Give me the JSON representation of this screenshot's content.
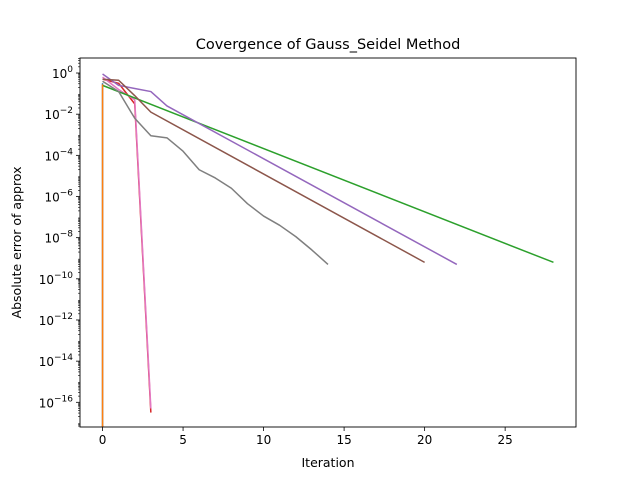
{
  "chart_data": {
    "type": "line",
    "title": "Covergence of Gauss_Seidel Method",
    "xlabel": "Iteration",
    "ylabel": "Absolute error of approx",
    "xlim": [
      -1.4,
      29.4
    ],
    "ylim_log10": [
      -17.2,
      0.73
    ],
    "yscale": "log",
    "grid": false,
    "x_ticks": [
      {
        "value": 0,
        "label": "0"
      },
      {
        "value": 5,
        "label": "5"
      },
      {
        "value": 10,
        "label": "10"
      },
      {
        "value": 15,
        "label": "15"
      },
      {
        "value": 20,
        "label": "20"
      },
      {
        "value": 25,
        "label": "25"
      }
    ],
    "y_ticks": [
      {
        "exp": 0,
        "base": "10",
        "sup": "0"
      },
      {
        "exp": -2,
        "base": "10",
        "sup": "−2"
      },
      {
        "exp": -4,
        "base": "10",
        "sup": "−4"
      },
      {
        "exp": -6,
        "base": "10",
        "sup": "−6"
      },
      {
        "exp": -8,
        "base": "10",
        "sup": "−8"
      },
      {
        "exp": -10,
        "base": "10",
        "sup": "−10"
      },
      {
        "exp": -12,
        "base": "10",
        "sup": "−12"
      },
      {
        "exp": -14,
        "base": "10",
        "sup": "−14"
      },
      {
        "exp": -16,
        "base": "10",
        "sup": "−16"
      }
    ],
    "series": [
      {
        "color": "#1f77b4",
        "points": [
          [
            0,
            -0.5
          ],
          [
            0,
            -17.2
          ]
        ]
      },
      {
        "color": "#d62728",
        "points": [
          [
            0,
            -0.3
          ],
          [
            1,
            -0.5
          ],
          [
            2,
            -1.5
          ],
          [
            3,
            -16.5
          ]
        ]
      },
      {
        "color": "#e377c2",
        "points": [
          [
            0,
            -0.2
          ],
          [
            1,
            -0.8
          ],
          [
            2,
            -1.3
          ],
          [
            3,
            -16.3
          ]
        ]
      },
      {
        "color": "#2ca02c",
        "points": [
          [
            0,
            -0.6
          ],
          [
            28,
            -9.2
          ]
        ]
      },
      {
        "color": "#9467bd",
        "points": [
          [
            0,
            -0.05
          ],
          [
            1,
            -0.6
          ],
          [
            2,
            -0.75
          ],
          [
            3,
            -0.9
          ],
          [
            4,
            -1.6
          ],
          [
            22,
            -9.3
          ]
        ]
      },
      {
        "color": "#8c564b",
        "points": [
          [
            0,
            -0.3
          ],
          [
            1,
            -0.35
          ],
          [
            2,
            -1.1
          ],
          [
            3,
            -1.9
          ],
          [
            20,
            -9.2
          ]
        ]
      },
      {
        "color": "#7f7f7f",
        "points": [
          [
            0,
            -0.4
          ],
          [
            1,
            -0.9
          ],
          [
            2,
            -2.2
          ],
          [
            3,
            -3.05
          ],
          [
            4,
            -3.15
          ],
          [
            5,
            -3.8
          ],
          [
            6,
            -4.7
          ],
          [
            7,
            -5.1
          ],
          [
            8,
            -5.6
          ],
          [
            9,
            -6.35
          ],
          [
            10,
            -6.95
          ],
          [
            11,
            -7.4
          ],
          [
            12,
            -7.95
          ],
          [
            13,
            -8.6
          ],
          [
            14,
            -9.3
          ]
        ]
      },
      {
        "color": "#ff7f0e",
        "points": [
          [
            0,
            -0.55
          ],
          [
            0,
            -17.2
          ]
        ]
      }
    ]
  }
}
